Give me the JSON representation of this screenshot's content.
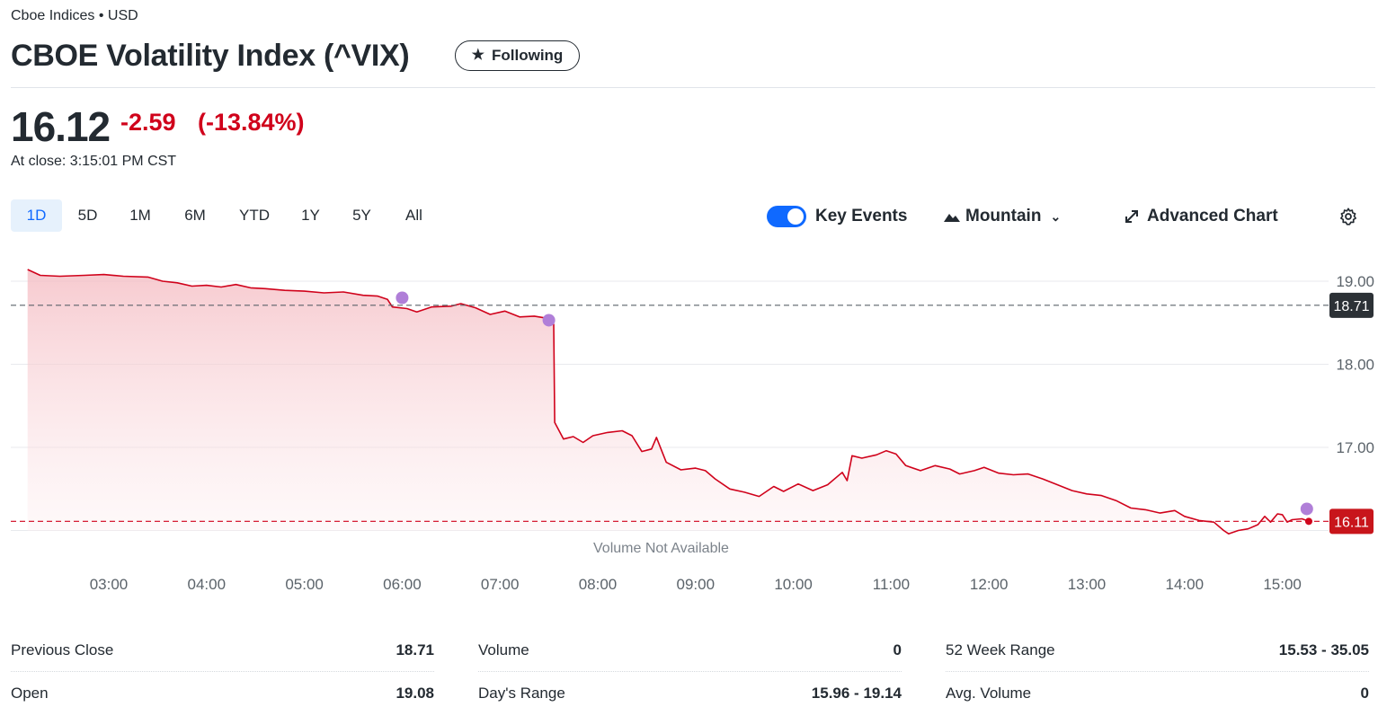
{
  "header": {
    "exchange": "Cboe Indices • USD",
    "title": "CBOE Volatility Index (^VIX)",
    "follow_label": "Following"
  },
  "quote": {
    "price": "16.12",
    "change": "-2.59",
    "change_pct": "(-13.84%)",
    "close_time": "At close: 3:15:01 PM CST",
    "negative_color": "#d0021b"
  },
  "range_tabs": [
    {
      "label": "1D",
      "active": true
    },
    {
      "label": "5D",
      "active": false
    },
    {
      "label": "1M",
      "active": false
    },
    {
      "label": "6M",
      "active": false
    },
    {
      "label": "YTD",
      "active": false
    },
    {
      "label": "1Y",
      "active": false
    },
    {
      "label": "5Y",
      "active": false
    },
    {
      "label": "All",
      "active": false
    }
  ],
  "controls": {
    "key_events_label": "Key Events",
    "key_events_on": true,
    "chart_type_label": "Mountain",
    "advanced_label": "Advanced Chart",
    "settings_icon": "gear-icon"
  },
  "chart_data": {
    "type": "area",
    "x_ticks": [
      "03:00",
      "04:00",
      "05:00",
      "06:00",
      "07:00",
      "08:00",
      "09:00",
      "10:00",
      "11:00",
      "12:00",
      "13:00",
      "14:00",
      "15:00"
    ],
    "y_ticks": [
      "19.00",
      "18.00",
      "17.00"
    ],
    "ylim": [
      15.75,
      19.2
    ],
    "xlim": [
      2.25,
      15.5
    ],
    "previous_close": 18.71,
    "previous_close_label": "18.71",
    "last_price": 16.11,
    "last_label": "16.11",
    "volume_note": "Volume Not Available",
    "line_color": "#d0021b",
    "fill_color": "#f7c9ce",
    "event_color": "#b07fd8",
    "key_events": [
      {
        "x": 6.0,
        "y": 18.8
      },
      {
        "x": 7.5,
        "y": 18.53
      },
      {
        "x": 15.25,
        "y": 16.26
      }
    ],
    "points": [
      [
        2.17,
        19.14
      ],
      [
        2.3,
        19.07
      ],
      [
        2.5,
        19.06
      ],
      [
        2.75,
        19.07
      ],
      [
        2.95,
        19.08
      ],
      [
        3.15,
        19.06
      ],
      [
        3.4,
        19.05
      ],
      [
        3.55,
        19.0
      ],
      [
        3.7,
        18.98
      ],
      [
        3.85,
        18.94
      ],
      [
        4.0,
        18.95
      ],
      [
        4.15,
        18.93
      ],
      [
        4.3,
        18.96
      ],
      [
        4.45,
        18.92
      ],
      [
        4.6,
        18.91
      ],
      [
        4.8,
        18.89
      ],
      [
        5.0,
        18.88
      ],
      [
        5.2,
        18.86
      ],
      [
        5.4,
        18.87
      ],
      [
        5.6,
        18.83
      ],
      [
        5.75,
        18.82
      ],
      [
        5.85,
        18.78
      ],
      [
        5.9,
        18.69
      ],
      [
        6.05,
        18.67
      ],
      [
        6.15,
        18.63
      ],
      [
        6.3,
        18.69
      ],
      [
        6.5,
        18.7
      ],
      [
        6.6,
        18.73
      ],
      [
        6.75,
        18.68
      ],
      [
        6.9,
        18.6
      ],
      [
        7.05,
        18.64
      ],
      [
        7.2,
        18.57
      ],
      [
        7.35,
        18.58
      ],
      [
        7.5,
        18.55
      ],
      [
        7.55,
        18.48
      ],
      [
        7.56,
        17.3
      ],
      [
        7.65,
        17.1
      ],
      [
        7.75,
        17.13
      ],
      [
        7.85,
        17.06
      ],
      [
        7.95,
        17.14
      ],
      [
        8.1,
        17.18
      ],
      [
        8.25,
        17.2
      ],
      [
        8.35,
        17.14
      ],
      [
        8.45,
        16.95
      ],
      [
        8.55,
        16.98
      ],
      [
        8.6,
        17.12
      ],
      [
        8.7,
        16.82
      ],
      [
        8.85,
        16.73
      ],
      [
        9.0,
        16.75
      ],
      [
        9.1,
        16.72
      ],
      [
        9.2,
        16.62
      ],
      [
        9.35,
        16.5
      ],
      [
        9.5,
        16.46
      ],
      [
        9.65,
        16.41
      ],
      [
        9.8,
        16.53
      ],
      [
        9.9,
        16.47
      ],
      [
        10.05,
        16.56
      ],
      [
        10.2,
        16.48
      ],
      [
        10.35,
        16.55
      ],
      [
        10.5,
        16.7
      ],
      [
        10.55,
        16.6
      ],
      [
        10.6,
        16.9
      ],
      [
        10.7,
        16.87
      ],
      [
        10.85,
        16.91
      ],
      [
        10.95,
        16.96
      ],
      [
        11.05,
        16.92
      ],
      [
        11.15,
        16.78
      ],
      [
        11.3,
        16.72
      ],
      [
        11.45,
        16.78
      ],
      [
        11.6,
        16.74
      ],
      [
        11.7,
        16.68
      ],
      [
        11.85,
        16.72
      ],
      [
        11.95,
        16.76
      ],
      [
        12.1,
        16.69
      ],
      [
        12.25,
        16.67
      ],
      [
        12.4,
        16.68
      ],
      [
        12.55,
        16.62
      ],
      [
        12.7,
        16.55
      ],
      [
        12.85,
        16.48
      ],
      [
        13.0,
        16.44
      ],
      [
        13.15,
        16.42
      ],
      [
        13.3,
        16.36
      ],
      [
        13.45,
        16.27
      ],
      [
        13.6,
        16.25
      ],
      [
        13.75,
        16.21
      ],
      [
        13.9,
        16.24
      ],
      [
        14.0,
        16.17
      ],
      [
        14.15,
        16.12
      ],
      [
        14.3,
        16.1
      ],
      [
        14.4,
        16.0
      ],
      [
        14.45,
        15.96
      ],
      [
        14.55,
        16.0
      ],
      [
        14.65,
        16.02
      ],
      [
        14.75,
        16.07
      ],
      [
        14.82,
        16.17
      ],
      [
        14.88,
        16.1
      ],
      [
        14.95,
        16.2
      ],
      [
        15.0,
        16.19
      ],
      [
        15.05,
        16.1
      ],
      [
        15.1,
        16.13
      ],
      [
        15.2,
        16.14
      ],
      [
        15.27,
        16.11
      ]
    ]
  },
  "stats": [
    [
      {
        "label": "Previous Close",
        "value": "18.71"
      },
      {
        "label": "Open",
        "value": "19.08"
      }
    ],
    [
      {
        "label": "Volume",
        "value": "0"
      },
      {
        "label": "Day's Range",
        "value": "15.96 - 19.14"
      }
    ],
    [
      {
        "label": "52 Week Range",
        "value": "15.53 - 35.05"
      },
      {
        "label": "Avg. Volume",
        "value": "0"
      }
    ]
  ]
}
